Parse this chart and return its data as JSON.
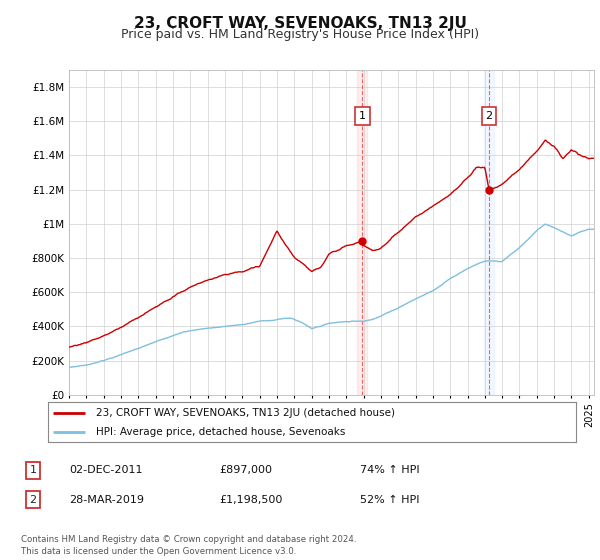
{
  "title": "23, CROFT WAY, SEVENOAKS, TN13 2JU",
  "subtitle": "Price paid vs. HM Land Registry's House Price Index (HPI)",
  "ylabel_ticks": [
    "£0",
    "£200K",
    "£400K",
    "£600K",
    "£800K",
    "£1M",
    "£1.2M",
    "£1.4M",
    "£1.6M",
    "£1.8M"
  ],
  "ylabel_values": [
    0,
    200000,
    400000,
    600000,
    800000,
    1000000,
    1200000,
    1400000,
    1600000,
    1800000
  ],
  "ylim": [
    0,
    1900000
  ],
  "xlim_start": 1995.0,
  "xlim_end": 2025.3,
  "hpi_color": "#7fbfdf",
  "price_color": "#cc0000",
  "marker1_date": 2011.92,
  "marker1_price": 897000,
  "marker2_date": 2019.24,
  "marker2_price": 1198500,
  "legend_entry1": "23, CROFT WAY, SEVENOAKS, TN13 2JU (detached house)",
  "legend_entry2": "HPI: Average price, detached house, Sevenoaks",
  "annot1_label": "1",
  "annot1_date": "02-DEC-2011",
  "annot1_price": "£897,000",
  "annot1_hpi": "74% ↑ HPI",
  "annot2_label": "2",
  "annot2_date": "28-MAR-2019",
  "annot2_price": "£1,198,500",
  "annot2_hpi": "52% ↑ HPI",
  "footer": "Contains HM Land Registry data © Crown copyright and database right 2024.\nThis data is licensed under the Open Government Licence v3.0.",
  "bg_color": "#ffffff",
  "grid_color": "#d0d0d0",
  "dashed_vline1": 2011.92,
  "dashed_vline2": 2019.24,
  "shade_color": "#ffcccc",
  "title_fontsize": 11,
  "subtitle_fontsize": 9
}
